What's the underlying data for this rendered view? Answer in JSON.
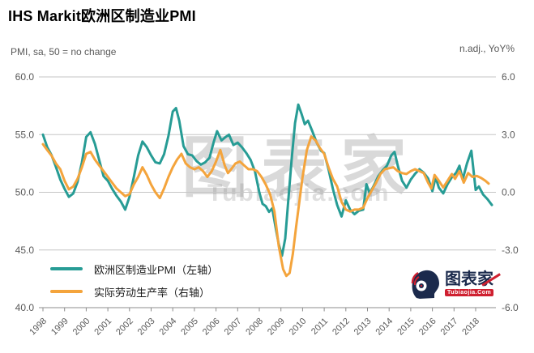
{
  "title": "IHS Markit欧洲区制造业PMI",
  "legend": {
    "items": [
      {
        "label": "欧洲区制造业PMI（左轴）",
        "color": "#279c95"
      },
      {
        "label": "实际劳动生产率（右轴）",
        "color": "#f4a43c"
      }
    ]
  },
  "watermark": {
    "text": "图表家",
    "subtext": "Tubiaojia.com"
  },
  "logo": {
    "name": "图表家",
    "subtext": "Tubiaojia.Com"
  },
  "colors": {
    "pmi_line": "#279c95",
    "productivity_line": "#f4a43c",
    "grid": "#c6c6c6",
    "axis_line": "#8c8c8c",
    "axis_text": "#595959",
    "logo_navy": "#1b2a4c",
    "logo_red": "#cf2030"
  },
  "chart_data": {
    "type": "line",
    "title": "IHS Markit欧洲区制造业PMI",
    "grid": true,
    "legend_position": "bottom-left",
    "x_range": [
      1998,
      2018.85
    ],
    "x_ticks": [
      "1998",
      "1999",
      "2000",
      "2001",
      "2002",
      "2003",
      "2004",
      "2005",
      "2006",
      "2007",
      "2008",
      "2009",
      "2010",
      "2011",
      "2012",
      "2013",
      "2014",
      "2015",
      "2016",
      "2017",
      "2018"
    ],
    "left_axis": {
      "label": "PMI, sa, 50 = no change",
      "min": 40,
      "max": 60,
      "ticks": [
        "60.0",
        "55.0",
        "50.0",
        "45.0",
        "40.0"
      ]
    },
    "right_axis": {
      "label": "n.adj., YoY%",
      "min": -6,
      "max": 6,
      "ticks": [
        "6.0",
        "3.0",
        "0.0",
        "-3.0",
        "-6.0"
      ]
    },
    "series": [
      {
        "name": "欧洲区制造业PMI（左轴）",
        "axis": "left",
        "color": "#279c95",
        "points": [
          [
            1998.0,
            55.0
          ],
          [
            1998.2,
            53.9
          ],
          [
            1998.4,
            53.2
          ],
          [
            1998.6,
            52.2
          ],
          [
            1998.8,
            51.1
          ],
          [
            1999.0,
            50.3
          ],
          [
            1999.2,
            49.6
          ],
          [
            1999.4,
            49.9
          ],
          [
            1999.6,
            50.9
          ],
          [
            1999.8,
            52.6
          ],
          [
            2000.0,
            54.8
          ],
          [
            2000.2,
            55.2
          ],
          [
            2000.4,
            54.2
          ],
          [
            2000.6,
            52.8
          ],
          [
            2000.8,
            51.4
          ],
          [
            2001.0,
            51.0
          ],
          [
            2001.2,
            50.3
          ],
          [
            2001.4,
            49.7
          ],
          [
            2001.6,
            49.2
          ],
          [
            2001.8,
            48.5
          ],
          [
            2002.0,
            49.6
          ],
          [
            2002.2,
            51.3
          ],
          [
            2002.4,
            53.2
          ],
          [
            2002.6,
            54.4
          ],
          [
            2002.8,
            53.9
          ],
          [
            2003.0,
            53.2
          ],
          [
            2003.2,
            52.6
          ],
          [
            2003.4,
            52.5
          ],
          [
            2003.6,
            53.3
          ],
          [
            2003.8,
            54.9
          ],
          [
            2004.0,
            57.0
          ],
          [
            2004.15,
            57.3
          ],
          [
            2004.3,
            56.2
          ],
          [
            2004.5,
            54.0
          ],
          [
            2004.7,
            53.3
          ],
          [
            2004.9,
            53.2
          ],
          [
            2005.1,
            52.7
          ],
          [
            2005.3,
            52.4
          ],
          [
            2005.5,
            52.6
          ],
          [
            2005.7,
            53.0
          ],
          [
            2005.9,
            54.4
          ],
          [
            2006.05,
            55.3
          ],
          [
            2006.25,
            54.5
          ],
          [
            2006.45,
            54.8
          ],
          [
            2006.6,
            55.0
          ],
          [
            2006.8,
            54.1
          ],
          [
            2007.0,
            54.3
          ],
          [
            2007.2,
            53.9
          ],
          [
            2007.4,
            53.4
          ],
          [
            2007.6,
            52.8
          ],
          [
            2007.8,
            51.8
          ],
          [
            2008.0,
            50.0
          ],
          [
            2008.15,
            49.0
          ],
          [
            2008.3,
            48.8
          ],
          [
            2008.45,
            48.3
          ],
          [
            2008.6,
            48.6
          ],
          [
            2008.75,
            47.0
          ],
          [
            2008.9,
            45.5
          ],
          [
            2009.05,
            44.5
          ],
          [
            2009.2,
            46.0
          ],
          [
            2009.35,
            49.5
          ],
          [
            2009.5,
            53.0
          ],
          [
            2009.65,
            56.0
          ],
          [
            2009.8,
            57.6
          ],
          [
            2009.95,
            56.8
          ],
          [
            2010.1,
            55.9
          ],
          [
            2010.25,
            56.2
          ],
          [
            2010.45,
            55.3
          ],
          [
            2010.65,
            54.3
          ],
          [
            2010.85,
            53.6
          ],
          [
            2011.0,
            53.4
          ],
          [
            2011.2,
            52.0
          ],
          [
            2011.4,
            50.3
          ],
          [
            2011.6,
            48.9
          ],
          [
            2011.8,
            47.9
          ],
          [
            2012.0,
            49.3
          ],
          [
            2012.2,
            48.5
          ],
          [
            2012.4,
            48.1
          ],
          [
            2012.6,
            48.4
          ],
          [
            2012.8,
            48.5
          ],
          [
            2012.95,
            50.7
          ],
          [
            2013.1,
            49.9
          ],
          [
            2013.3,
            50.6
          ],
          [
            2013.5,
            51.4
          ],
          [
            2013.7,
            51.9
          ],
          [
            2013.9,
            52.3
          ],
          [
            2014.1,
            53.2
          ],
          [
            2014.25,
            53.5
          ],
          [
            2014.4,
            52.3
          ],
          [
            2014.6,
            51.0
          ],
          [
            2014.8,
            50.4
          ],
          [
            2015.0,
            51.1
          ],
          [
            2015.2,
            51.6
          ],
          [
            2015.4,
            52.0
          ],
          [
            2015.6,
            51.7
          ],
          [
            2015.8,
            51.2
          ],
          [
            2016.0,
            50.1
          ],
          [
            2016.15,
            51.3
          ],
          [
            2016.3,
            50.4
          ],
          [
            2016.5,
            49.9
          ],
          [
            2016.7,
            50.7
          ],
          [
            2016.9,
            51.3
          ],
          [
            2017.1,
            51.7
          ],
          [
            2017.25,
            52.3
          ],
          [
            2017.4,
            51.1
          ],
          [
            2017.6,
            52.5
          ],
          [
            2017.8,
            53.6
          ],
          [
            2018.0,
            50.2
          ],
          [
            2018.15,
            50.5
          ],
          [
            2018.35,
            49.8
          ],
          [
            2018.55,
            49.4
          ],
          [
            2018.75,
            48.9
          ]
        ]
      },
      {
        "name": "实际劳动生产率（右轴）",
        "axis": "right",
        "color": "#f4a43c",
        "points": [
          [
            1998.0,
            2.5
          ],
          [
            1998.2,
            2.2
          ],
          [
            1998.4,
            1.9
          ],
          [
            1998.6,
            1.5
          ],
          [
            1998.8,
            1.2
          ],
          [
            1999.0,
            0.6
          ],
          [
            1999.2,
            0.15
          ],
          [
            1999.4,
            0.3
          ],
          [
            1999.6,
            0.7
          ],
          [
            1999.8,
            1.3
          ],
          [
            2000.0,
            2.0
          ],
          [
            2000.2,
            2.1
          ],
          [
            2000.4,
            1.7
          ],
          [
            2000.6,
            1.4
          ],
          [
            2000.8,
            1.1
          ],
          [
            2001.0,
            0.8
          ],
          [
            2001.2,
            0.5
          ],
          [
            2001.4,
            0.2
          ],
          [
            2001.6,
            0.0
          ],
          [
            2001.8,
            -0.2
          ],
          [
            2002.0,
            -0.1
          ],
          [
            2002.2,
            0.4
          ],
          [
            2002.4,
            0.8
          ],
          [
            2002.6,
            1.3
          ],
          [
            2002.8,
            0.9
          ],
          [
            2003.0,
            0.4
          ],
          [
            2003.2,
            0.0
          ],
          [
            2003.4,
            -0.3
          ],
          [
            2003.6,
            0.2
          ],
          [
            2003.8,
            0.8
          ],
          [
            2004.0,
            1.3
          ],
          [
            2004.2,
            1.7
          ],
          [
            2004.4,
            2.0
          ],
          [
            2004.6,
            1.5
          ],
          [
            2004.8,
            1.3
          ],
          [
            2005.0,
            1.2
          ],
          [
            2005.2,
            1.3
          ],
          [
            2005.4,
            1.1
          ],
          [
            2005.6,
            0.8
          ],
          [
            2005.8,
            1.1
          ],
          [
            2006.0,
            1.6
          ],
          [
            2006.2,
            2.2
          ],
          [
            2006.4,
            1.4
          ],
          [
            2006.55,
            1.0
          ],
          [
            2006.7,
            1.2
          ],
          [
            2006.9,
            1.5
          ],
          [
            2007.1,
            1.6
          ],
          [
            2007.3,
            1.4
          ],
          [
            2007.5,
            1.2
          ],
          [
            2007.7,
            1.2
          ],
          [
            2007.9,
            1.1
          ],
          [
            2008.1,
            0.8
          ],
          [
            2008.3,
            0.4
          ],
          [
            2008.5,
            -0.1
          ],
          [
            2008.7,
            -1.0
          ],
          [
            2008.9,
            -2.8
          ],
          [
            2009.1,
            -4.0
          ],
          [
            2009.25,
            -4.35
          ],
          [
            2009.4,
            -4.2
          ],
          [
            2009.55,
            -3.2
          ],
          [
            2009.7,
            -1.8
          ],
          [
            2009.85,
            -0.5
          ],
          [
            2010.0,
            0.8
          ],
          [
            2010.2,
            2.2
          ],
          [
            2010.4,
            2.9
          ],
          [
            2010.6,
            2.7
          ],
          [
            2010.8,
            2.3
          ],
          [
            2011.0,
            2.0
          ],
          [
            2011.2,
            1.3
          ],
          [
            2011.4,
            0.7
          ],
          [
            2011.6,
            0.3
          ],
          [
            2011.8,
            -0.5
          ],
          [
            2012.0,
            -0.9
          ],
          [
            2012.2,
            -1.0
          ],
          [
            2012.4,
            -0.9
          ],
          [
            2012.6,
            -0.9
          ],
          [
            2012.8,
            -0.8
          ],
          [
            2013.0,
            -0.3
          ],
          [
            2013.2,
            0.1
          ],
          [
            2013.4,
            0.5
          ],
          [
            2013.6,
            0.95
          ],
          [
            2013.8,
            1.2
          ],
          [
            2014.0,
            1.25
          ],
          [
            2014.2,
            1.3
          ],
          [
            2014.4,
            1.1
          ],
          [
            2014.6,
            1.0
          ],
          [
            2014.8,
            0.95
          ],
          [
            2015.0,
            1.1
          ],
          [
            2015.2,
            1.2
          ],
          [
            2015.4,
            1.1
          ],
          [
            2015.6,
            1.0
          ],
          [
            2015.8,
            0.5
          ],
          [
            2015.95,
            0.2
          ],
          [
            2016.1,
            0.9
          ],
          [
            2016.3,
            0.6
          ],
          [
            2016.5,
            0.25
          ],
          [
            2016.7,
            0.6
          ],
          [
            2016.9,
            0.95
          ],
          [
            2017.05,
            0.7
          ],
          [
            2017.25,
            1.1
          ],
          [
            2017.45,
            0.5
          ],
          [
            2017.65,
            1.0
          ],
          [
            2017.85,
            0.8
          ],
          [
            2018.05,
            0.85
          ],
          [
            2018.25,
            0.75
          ],
          [
            2018.45,
            0.6
          ],
          [
            2018.6,
            0.45
          ]
        ]
      }
    ]
  }
}
